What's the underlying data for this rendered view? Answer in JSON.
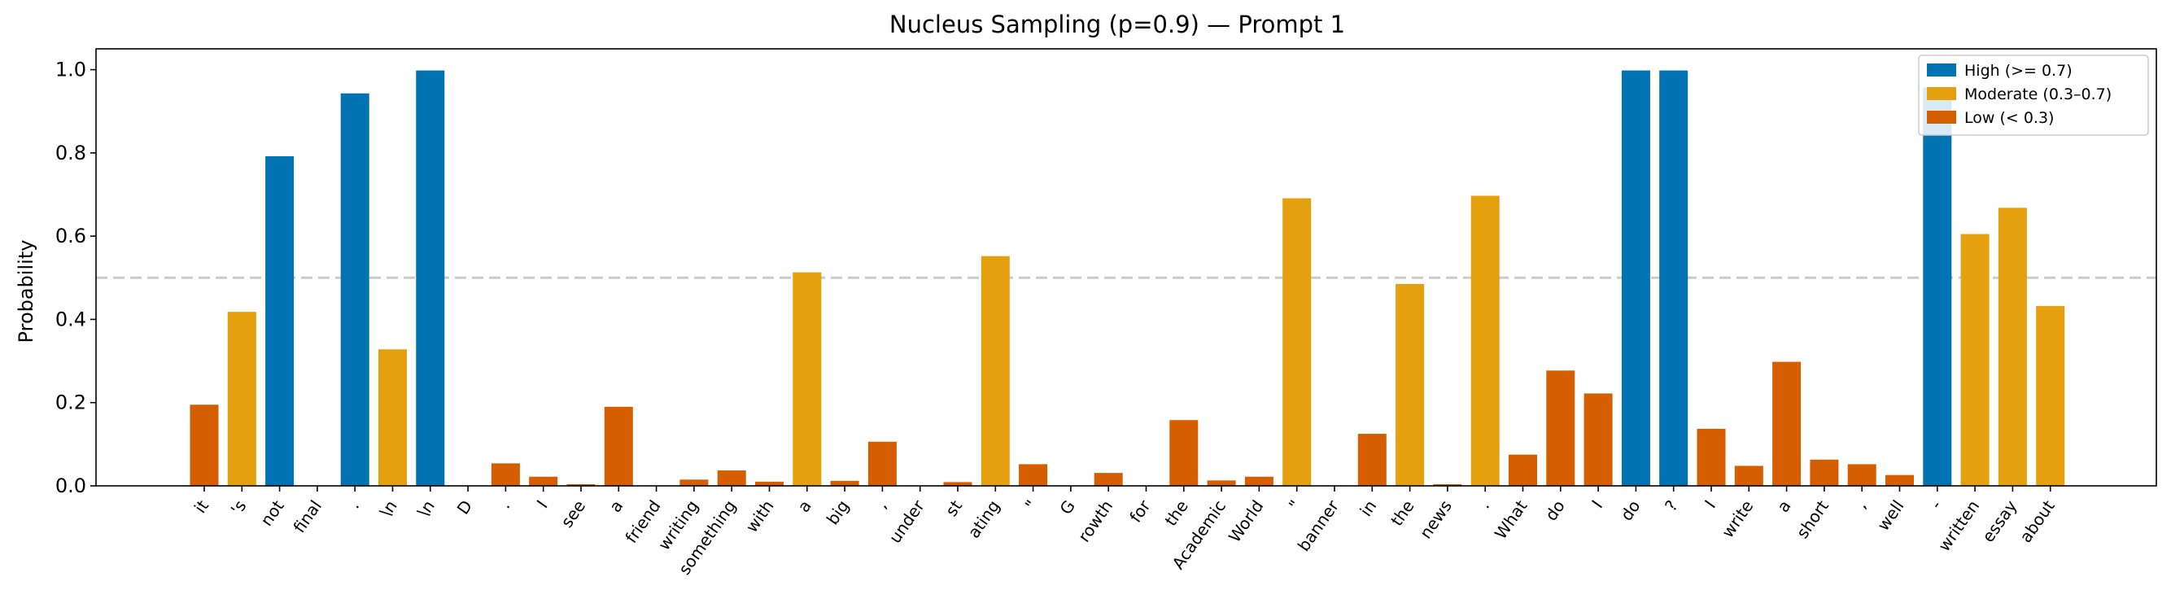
{
  "chart_data": {
    "type": "bar",
    "title": "Nucleus Sampling (p=0.9) — Prompt 1",
    "xlabel": "",
    "ylabel": "Probability",
    "ylim": [
      0,
      1.05
    ],
    "yticks": [
      "0.0",
      "0.2",
      "0.4",
      "0.6",
      "0.8",
      "1.0"
    ],
    "reference_line": 0.5,
    "grid": false,
    "legend_position": "top-right",
    "legend": [
      {
        "label": "High (>= 0.7)",
        "color": "#0173b2"
      },
      {
        "label": "Moderate (0.3–0.7)",
        "color": "#e5a00d"
      },
      {
        "label": "Low (< 0.3)",
        "color": "#d55e00"
      }
    ],
    "colors": {
      "high": "#0173b2",
      "moderate": "#e5a00d",
      "low": "#d55e00",
      "reference": "#cccccc"
    },
    "categories": [
      "it",
      "'s",
      "not",
      "final",
      ".",
      "\\n",
      "\\n",
      "D",
      ".",
      "I",
      "see",
      "a",
      "friend",
      "writing",
      "something",
      "with",
      "a",
      "big",
      ",",
      "under",
      "st",
      "ating",
      "\"",
      "G",
      "rowth",
      "for",
      "the",
      "Academic",
      "World",
      "\"",
      "banner",
      "in",
      "the",
      "news",
      ".",
      "What",
      "do",
      "I",
      "do",
      "?",
      "I",
      "write",
      "a",
      "short",
      ",",
      "well",
      "-",
      "written",
      "essay",
      "about"
    ],
    "values": [
      0.195,
      0.418,
      0.792,
      0.001,
      0.943,
      0.328,
      0.998,
      0.001,
      0.054,
      0.022,
      0.004,
      0.19,
      0.001,
      0.015,
      0.037,
      0.01,
      0.513,
      0.012,
      0.106,
      0.001,
      0.009,
      0.552,
      0.052,
      0.001,
      0.031,
      0.001,
      0.158,
      0.013,
      0.022,
      0.691,
      0.001,
      0.125,
      0.485,
      0.004,
      0.697,
      0.075,
      0.277,
      0.222,
      0.998,
      0.998,
      0.137,
      0.048,
      0.298,
      0.063,
      0.052,
      0.026,
      0.957,
      0.605,
      0.668,
      0.432
    ]
  }
}
